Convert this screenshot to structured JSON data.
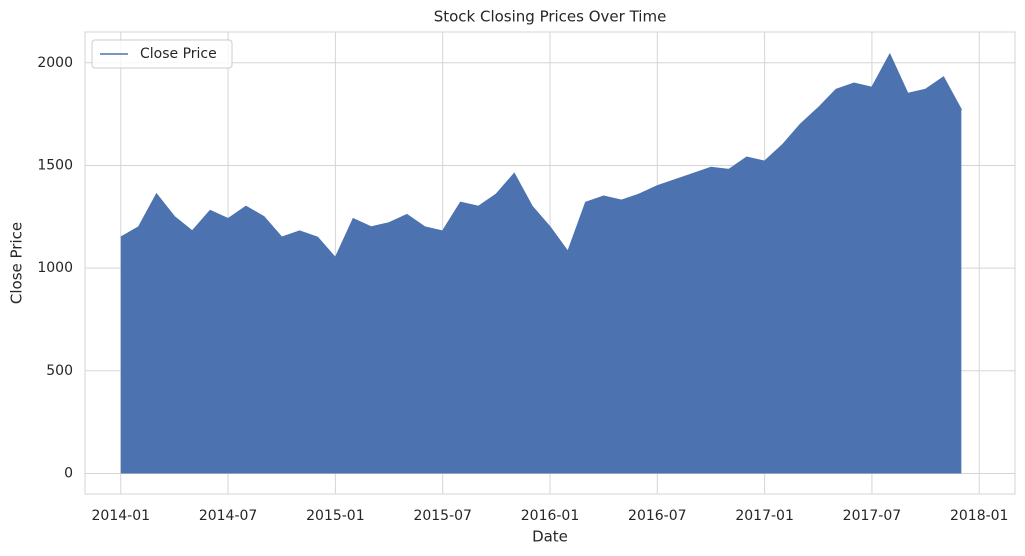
{
  "chart_data": {
    "type": "line",
    "title": "Stock Closing Prices Over Time",
    "x_label": "Date",
    "y_label": "Close Price",
    "x": [
      "2014-01",
      "2014-02",
      "2014-03",
      "2014-04",
      "2014-05",
      "2014-06",
      "2014-07",
      "2014-08",
      "2014-09",
      "2014-10",
      "2014-11",
      "2014-12",
      "2015-01",
      "2015-02",
      "2015-03",
      "2015-04",
      "2015-05",
      "2015-06",
      "2015-07",
      "2015-08",
      "2015-09",
      "2015-10",
      "2015-11",
      "2015-12",
      "2016-01",
      "2016-02",
      "2016-03",
      "2016-04",
      "2016-05",
      "2016-06",
      "2016-07",
      "2016-08",
      "2016-09",
      "2016-10",
      "2016-11",
      "2016-12",
      "2017-01",
      "2017-02",
      "2017-03",
      "2017-04",
      "2017-05",
      "2017-06",
      "2017-07",
      "2017-08",
      "2017-09",
      "2017-10",
      "2017-11",
      "2017-12"
    ],
    "series": [
      {
        "name": "Close Price",
        "color": "#4c72b0",
        "fill_to_zero": true,
        "values": [
          1150,
          1200,
          1360,
          1250,
          1180,
          1280,
          1240,
          1300,
          1250,
          1150,
          1180,
          1150,
          1050,
          1240,
          1200,
          1220,
          1260,
          1200,
          1180,
          1320,
          1300,
          1360,
          1460,
          1300,
          1200,
          1080,
          1320,
          1350,
          1330,
          1360,
          1400,
          1430,
          1460,
          1490,
          1480,
          1540,
          1520,
          1600,
          1700,
          1780,
          1870,
          1900,
          1880,
          2040,
          1850,
          1870,
          1930,
          1770
        ]
      }
    ],
    "xlim": [
      "2013-11",
      "2018-03"
    ],
    "xticks": [
      "2014-01",
      "2014-07",
      "2015-01",
      "2015-07",
      "2016-01",
      "2016-07",
      "2017-01",
      "2017-07",
      "2018-01"
    ],
    "ylim": [
      -100,
      2150
    ],
    "yticks": [
      0,
      500,
      1000,
      1500,
      2000
    ],
    "grid": true,
    "legend": "upper left"
  }
}
